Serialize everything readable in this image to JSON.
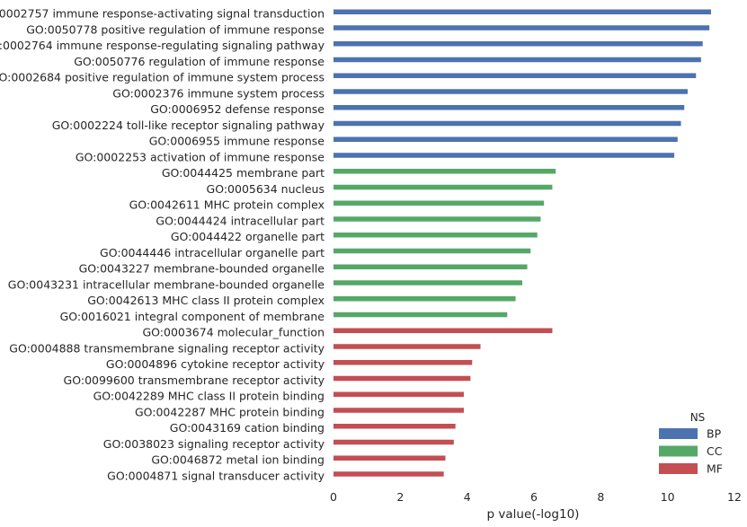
{
  "chart_data": {
    "type": "bar",
    "orientation": "horizontal",
    "title": "",
    "xlabel": "p value(-log10)",
    "ylabel": "",
    "xlim": [
      0,
      12
    ],
    "xticks": [
      0,
      2,
      4,
      6,
      8,
      10,
      12
    ],
    "grid": false,
    "legend": {
      "title": "NS",
      "placement": "bottom-right",
      "entries": [
        {
          "name": "BP",
          "color": "#4c72b0"
        },
        {
          "name": "CC",
          "color": "#55a868"
        },
        {
          "name": "MF",
          "color": "#c44e52"
        }
      ]
    },
    "categories": [
      "GO:0002757 immune response-activating signal transduction",
      "GO:0050778 positive regulation of immune response",
      "GO:0002764 immune response-regulating signaling pathway",
      "GO:0050776 regulation of immune response",
      "GO:0002684 positive regulation of immune system process",
      "GO:0002376 immune system process",
      "GO:0006952 defense response",
      "GO:0002224 toll-like receptor signaling pathway",
      "GO:0006955 immune response",
      "GO:0002253 activation of immune response",
      "GO:0044425 membrane part",
      "GO:0005634 nucleus",
      "GO:0042611 MHC protein complex",
      "GO:0044424 intracellular part",
      "GO:0044422 organelle part",
      "GO:0044446 intracellular organelle part",
      "GO:0043227 membrane-bounded organelle",
      "GO:0043231 intracellular membrane-bounded organelle",
      "GO:0042613 MHC class II protein complex",
      "GO:0016021 integral component of membrane",
      "GO:0003674 molecular_function",
      "GO:0004888 transmembrane signaling receptor activity",
      "GO:0004896 cytokine receptor activity",
      "GO:0099600 transmembrane receptor activity",
      "GO:0042289 MHC class II protein binding",
      "GO:0042287 MHC protein binding",
      "GO:0043169 cation binding",
      "GO:0038023 signaling receptor activity",
      "GO:0046872 metal ion binding",
      "GO:0004871 signal transducer activity"
    ],
    "groups": [
      "BP",
      "BP",
      "BP",
      "BP",
      "BP",
      "BP",
      "BP",
      "BP",
      "BP",
      "BP",
      "CC",
      "CC",
      "CC",
      "CC",
      "CC",
      "CC",
      "CC",
      "CC",
      "CC",
      "CC",
      "MF",
      "MF",
      "MF",
      "MF",
      "MF",
      "MF",
      "MF",
      "MF",
      "MF",
      "MF"
    ],
    "values": [
      11.3,
      11.25,
      11.05,
      11.0,
      10.85,
      10.6,
      10.5,
      10.4,
      10.3,
      10.2,
      6.65,
      6.55,
      6.3,
      6.2,
      6.1,
      5.9,
      5.8,
      5.65,
      5.45,
      5.2,
      6.55,
      4.4,
      4.15,
      4.1,
      3.9,
      3.9,
      3.65,
      3.6,
      3.35,
      3.3
    ]
  }
}
